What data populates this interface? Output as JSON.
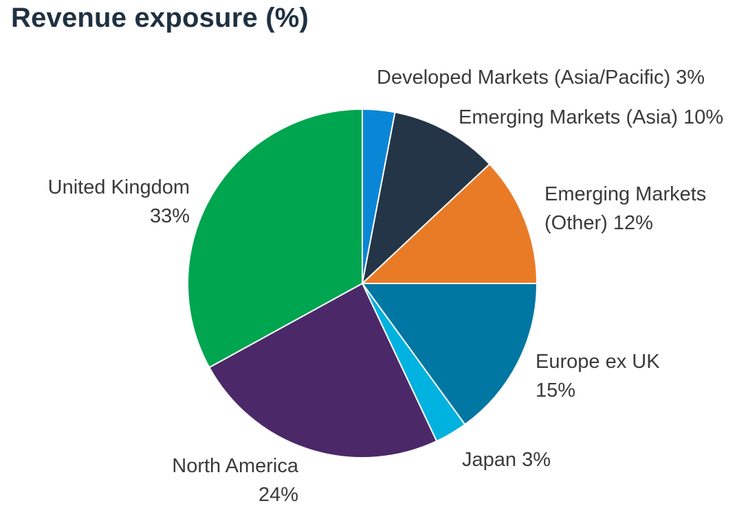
{
  "page": {
    "title": "Revenue exposure (%)"
  },
  "chart_data": {
    "type": "pie",
    "title": "Revenue exposure (%)",
    "unit": "%",
    "start": "top (12 o'clock), clockwise",
    "slices": [
      {
        "name": "Developed Markets (Asia/Pacific)",
        "value": 3,
        "color": "#0a86d6",
        "label": "Developed Markets (Asia/Pacific) 3%"
      },
      {
        "name": "Emerging Markets (Asia)",
        "value": 10,
        "color": "#233546",
        "label": "Emerging Markets (Asia) 10%"
      },
      {
        "name": "Emerging Markets (Other)",
        "value": 12,
        "color": "#e97b27",
        "label_line1": "Emerging Markets",
        "label_line2": "(Other) 12%"
      },
      {
        "name": "Europe ex UK",
        "value": 15,
        "color": "#0077a3",
        "label_line1": "Europe ex UK",
        "label_line2": "15%"
      },
      {
        "name": "Japan",
        "value": 3,
        "color": "#00b2e0",
        "label": "Japan 3%"
      },
      {
        "name": "North America",
        "value": 24,
        "color": "#4b2968",
        "label_line1": "North America",
        "label_line2": "24%"
      },
      {
        "name": "United Kingdom",
        "value": 33,
        "color": "#00a54f",
        "label_line1": "United Kingdom",
        "label_line2": "33%"
      }
    ]
  }
}
